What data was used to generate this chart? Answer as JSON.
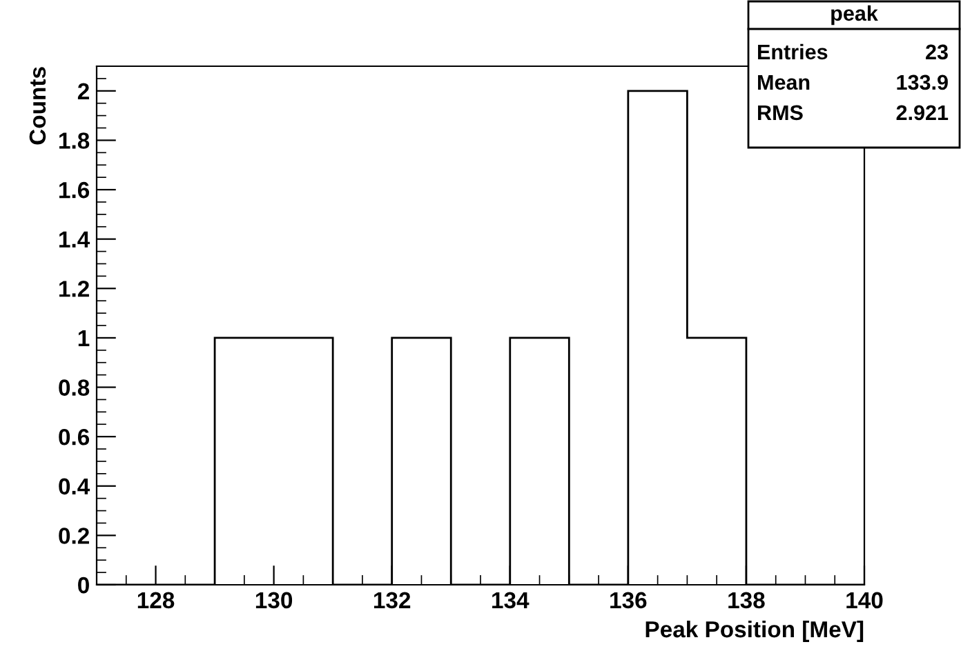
{
  "chart_data": {
    "type": "histogram",
    "xlabel": "Peak Position [MeV]",
    "ylabel": "Counts",
    "bins": [
      127,
      128,
      129,
      130,
      131,
      132,
      133,
      134,
      135,
      136,
      137,
      138,
      139,
      140
    ],
    "values": [
      0,
      0,
      1,
      1,
      0,
      1,
      0,
      1,
      0,
      2,
      1,
      0,
      0
    ],
    "color": "#000000",
    "xlim": [
      127,
      140
    ],
    "xticks": [
      128,
      130,
      132,
      134,
      136,
      138,
      140
    ],
    "ylim": [
      0,
      2.1
    ],
    "yticks": [
      0,
      0.2,
      0.4,
      0.6,
      0.8,
      1,
      1.2,
      1.4,
      1.6,
      1.8,
      2
    ],
    "grid": false,
    "legend": false,
    "annotations": [
      "peak",
      "Entries",
      "23",
      "Mean",
      "133.9",
      "RMS",
      "2.921"
    ]
  }
}
